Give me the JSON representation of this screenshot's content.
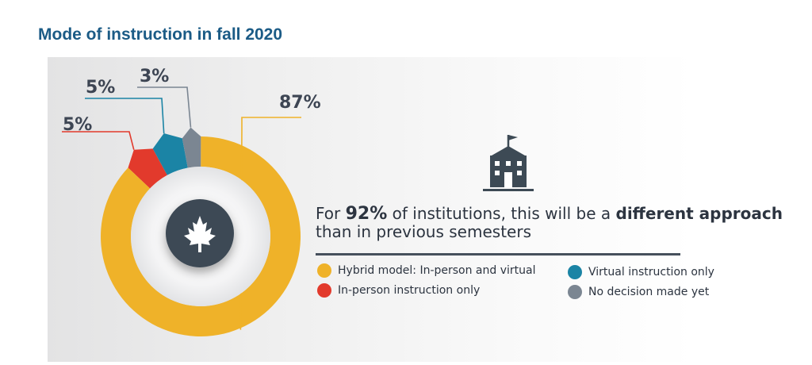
{
  "page": {
    "title": "Mode of instruction in fall 2020"
  },
  "chart_data": {
    "type": "pie",
    "variant": "donut",
    "slices": [
      {
        "label": "Hybrid model: In-person and virtual",
        "value": 87,
        "value_label": "87%",
        "color": "#efb229"
      },
      {
        "label": "In-person instruction only",
        "value": 5,
        "value_label": "5%",
        "color": "#e23a2c"
      },
      {
        "label": "Virtual instruction only",
        "value": 5,
        "value_label": "5%",
        "color": "#1b84a5"
      },
      {
        "label": "No decision made yet",
        "value": 3,
        "value_label": "3%",
        "color": "#7b8692"
      }
    ],
    "center_icon": "maple-leaf-icon",
    "legend_position": "right"
  },
  "headline": {
    "prefix": "For ",
    "highlight": "92%",
    "middle": " of institutions, this will be a ",
    "emphasis": "different approach",
    "suffix": " than in previous semesters"
  },
  "icons": {
    "institution": "school-building-icon"
  },
  "colors": {
    "title": "#1b5b86",
    "text": "#2c3440",
    "center": "#3d4a55"
  }
}
